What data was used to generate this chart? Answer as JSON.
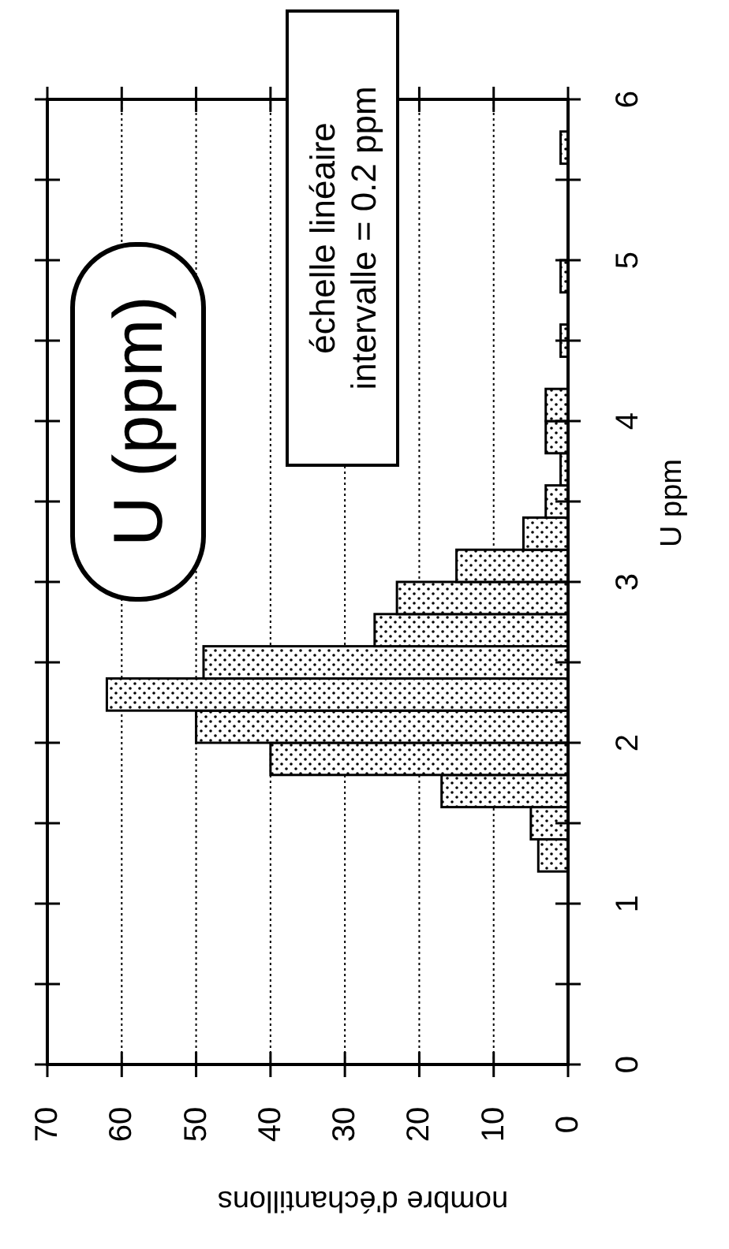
{
  "chart_data": {
    "type": "histogram",
    "orientation": "horizontal",
    "title": "U (ppm)",
    "ylabel": "U ppm",
    "xlabel": "nombre d'échantillons",
    "annotations": [
      "échelle linéaire\nintervalle = 0.2 ppm"
    ],
    "bins": [
      1.2,
      1.4,
      1.6,
      1.8,
      2.0,
      2.2,
      2.4,
      2.6,
      2.8,
      3.0,
      3.2,
      3.4,
      3.6,
      3.8,
      4.0,
      4.2,
      4.4,
      4.6,
      4.8,
      5.0,
      5.2,
      5.4,
      5.6,
      5.8
    ],
    "values": [
      4,
      5,
      17,
      40,
      50,
      62,
      49,
      26,
      23,
      15,
      6,
      3,
      1,
      3,
      3,
      0,
      1,
      0,
      1,
      0,
      0,
      0,
      1
    ],
    "ylim": [
      0,
      6
    ],
    "yticks": [
      0,
      {
        "value": 0.5,
        "label": null
      },
      1,
      {
        "value": 1.5,
        "label": null
      },
      2,
      {
        "value": 2.5,
        "label": null
      },
      3,
      {
        "value": 3.5,
        "label": null
      },
      4,
      {
        "value": 4.5,
        "label": null
      },
      5,
      {
        "value": 5.5,
        "label": null
      },
      6
    ],
    "xlim": [
      70,
      0
    ],
    "xticks": [
      70,
      60,
      50,
      40,
      30,
      20,
      10,
      0
    ],
    "grid": "x"
  }
}
